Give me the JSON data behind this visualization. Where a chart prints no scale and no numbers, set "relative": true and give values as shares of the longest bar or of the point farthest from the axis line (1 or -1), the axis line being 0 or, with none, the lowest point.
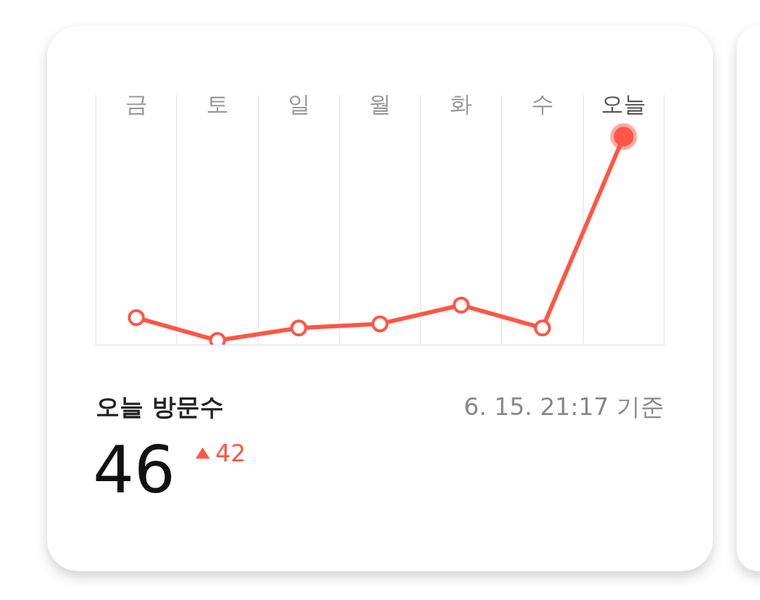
{
  "chart_data": {
    "type": "line",
    "title": "오늘 방문수",
    "categories": [
      "금",
      "토",
      "일",
      "월",
      "화",
      "수",
      "오늘"
    ],
    "series": [
      {
        "color": "#ff5645",
        "values": [
          0.13,
          0.02,
          0.08,
          0.1,
          0.19,
          0.08,
          1
        ]
      }
    ],
    "relative": true,
    "marker": "circle",
    "grid": "x",
    "legend": false,
    "annotations": [
      "6. 15. 21:17 기준",
      "46",
      "42"
    ]
  }
}
